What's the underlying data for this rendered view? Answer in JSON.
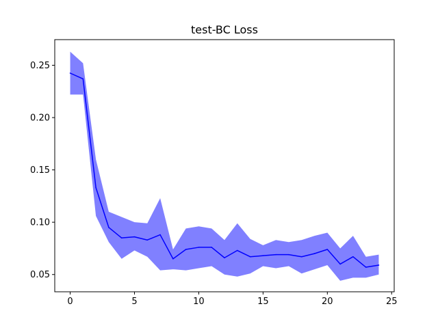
{
  "chart_data": {
    "type": "line",
    "title": "test-BC Loss",
    "xlabel": "",
    "ylabel": "",
    "xlim": [
      -1.2,
      25.2
    ],
    "ylim": [
      0.0335,
      0.2745
    ],
    "xticks": [
      0,
      5,
      10,
      15,
      20,
      25
    ],
    "yticks": [
      0.05,
      0.1,
      0.15,
      0.2,
      0.25
    ],
    "grid": false,
    "legend": "none",
    "series": [
      {
        "color": "#0000ff",
        "band_color": "#8080ff",
        "x": [
          0,
          1,
          2,
          3,
          4,
          5,
          6,
          7,
          8,
          9,
          10,
          11,
          12,
          13,
          14,
          15,
          16,
          17,
          18,
          19,
          20,
          21,
          22,
          23,
          24
        ],
        "values": [
          0.2425,
          0.237,
          0.133,
          0.095,
          0.085,
          0.086,
          0.083,
          0.088,
          0.065,
          0.074,
          0.076,
          0.076,
          0.066,
          0.073,
          0.067,
          0.068,
          0.069,
          0.069,
          0.067,
          0.07,
          0.074,
          0.06,
          0.067,
          0.057,
          0.059
        ],
        "upper": [
          0.263,
          0.252,
          0.16,
          0.11,
          0.105,
          0.1,
          0.099,
          0.123,
          0.074,
          0.094,
          0.096,
          0.094,
          0.083,
          0.099,
          0.084,
          0.078,
          0.083,
          0.081,
          0.083,
          0.087,
          0.09,
          0.075,
          0.087,
          0.067,
          0.069
        ],
        "lower": [
          0.222,
          0.222,
          0.106,
          0.081,
          0.065,
          0.073,
          0.067,
          0.054,
          0.055,
          0.054,
          0.056,
          0.058,
          0.05,
          0.048,
          0.051,
          0.058,
          0.056,
          0.058,
          0.051,
          0.055,
          0.059,
          0.044,
          0.047,
          0.047,
          0.05
        ]
      }
    ]
  }
}
